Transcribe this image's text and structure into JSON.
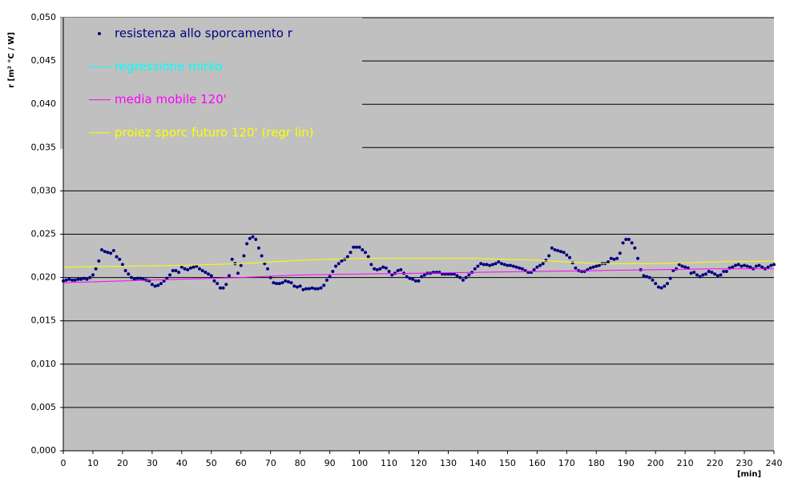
{
  "chart_data": {
    "type": "scatter",
    "ylabel": "r [m² °C / W]",
    "xlabel": "[min]",
    "xlim": [
      0,
      240
    ],
    "xticks": [
      0,
      10,
      20,
      30,
      40,
      50,
      60,
      70,
      80,
      90,
      100,
      110,
      120,
      130,
      140,
      150,
      160,
      170,
      180,
      190,
      200,
      210,
      220,
      230,
      240
    ],
    "ylim": [
      0,
      0.05
    ],
    "yticks": [
      {
        "value": 0,
        "label": "0,000"
      },
      {
        "value": 0.005,
        "label": "0,005"
      },
      {
        "value": 0.01,
        "label": "0,010"
      },
      {
        "value": 0.015,
        "label": "0,015"
      },
      {
        "value": 0.02,
        "label": "0,020"
      },
      {
        "value": 0.025,
        "label": "0,025"
      },
      {
        "value": 0.03,
        "label": "0,030"
      },
      {
        "value": 0.035,
        "label": "0,035"
      },
      {
        "value": 0.04,
        "label": "0,040"
      },
      {
        "value": 0.045,
        "label": "0,045"
      },
      {
        "value": 0.05,
        "label": "0,050"
      }
    ],
    "grid": true,
    "legend": "top-left",
    "background": "#c0c0c0",
    "series": [
      {
        "name": "resistenza allo sporcamento r",
        "color": "#000080",
        "mode": "markers",
        "x": [
          0,
          1,
          2,
          3,
          4,
          5,
          6,
          7,
          8,
          9,
          10,
          11,
          12,
          13,
          14,
          15,
          16,
          17,
          18,
          19,
          20,
          21,
          22,
          23,
          24,
          25,
          26,
          27,
          28,
          29,
          30,
          31,
          32,
          33,
          34,
          35,
          36,
          37,
          38,
          39,
          40,
          41,
          42,
          43,
          44,
          45,
          46,
          47,
          48,
          49,
          50,
          51,
          52,
          53,
          54,
          55,
          56,
          57,
          58,
          59,
          60,
          61,
          62,
          63,
          64,
          65,
          66,
          67,
          68,
          69,
          70,
          71,
          72,
          73,
          74,
          75,
          76,
          77,
          78,
          79,
          80,
          81,
          82,
          83,
          84,
          85,
          86,
          87,
          88,
          89,
          90,
          91,
          92,
          93,
          94,
          95,
          96,
          97,
          98,
          99,
          100,
          101,
          102,
          103,
          104,
          105,
          106,
          107,
          108,
          109,
          110,
          111,
          112,
          113,
          114,
          115,
          116,
          117,
          118,
          119,
          120,
          121,
          122,
          123,
          124,
          125,
          126,
          127,
          128,
          129,
          130,
          131,
          132,
          133,
          134,
          135,
          136,
          137,
          138,
          139,
          140,
          141,
          142,
          143,
          144,
          145,
          146,
          147,
          148,
          149,
          150,
          151,
          152,
          153,
          154,
          155,
          156,
          157,
          158,
          159,
          160,
          161,
          162,
          163,
          164,
          165,
          166,
          167,
          168,
          169,
          170,
          171,
          172,
          173,
          174,
          175,
          176,
          177,
          178,
          179,
          180,
          181,
          182,
          183,
          184,
          185,
          186,
          187,
          188,
          189,
          190,
          191,
          192,
          193,
          194,
          195,
          196,
          197,
          198,
          199,
          200,
          201,
          202,
          203,
          204,
          205,
          206,
          207,
          208,
          209,
          210,
          211,
          212,
          213,
          214,
          215,
          216,
          217,
          218,
          219,
          220,
          221,
          222,
          223,
          224,
          225,
          226,
          227,
          228,
          229,
          230,
          231,
          232,
          233,
          234,
          235,
          236,
          237,
          238,
          239,
          240
        ],
        "values": [
          0.0196,
          0.0197,
          0.0198,
          0.0197,
          0.0197,
          0.0198,
          0.0198,
          0.0199,
          0.0198,
          0.02,
          0.0203,
          0.021,
          0.0219,
          0.0232,
          0.023,
          0.0229,
          0.0228,
          0.0231,
          0.0224,
          0.0221,
          0.0215,
          0.0208,
          0.0204,
          0.02,
          0.0198,
          0.0199,
          0.0199,
          0.0198,
          0.0197,
          0.0196,
          0.0192,
          0.019,
          0.0191,
          0.0193,
          0.0196,
          0.0199,
          0.0203,
          0.0208,
          0.0208,
          0.0206,
          0.0212,
          0.021,
          0.0209,
          0.0211,
          0.0212,
          0.0213,
          0.021,
          0.0208,
          0.0206,
          0.0204,
          0.0202,
          0.0196,
          0.0193,
          0.0188,
          0.0188,
          0.0192,
          0.0202,
          0.0221,
          0.0216,
          0.0205,
          0.0214,
          0.0225,
          0.0239,
          0.0245,
          0.0247,
          0.0244,
          0.0234,
          0.0225,
          0.0216,
          0.021,
          0.02,
          0.0194,
          0.0193,
          0.0193,
          0.0194,
          0.0196,
          0.0195,
          0.0194,
          0.019,
          0.0189,
          0.019,
          0.0186,
          0.0187,
          0.0187,
          0.0188,
          0.0187,
          0.0187,
          0.0188,
          0.0191,
          0.0197,
          0.0201,
          0.0207,
          0.0213,
          0.0216,
          0.0219,
          0.0221,
          0.0224,
          0.0229,
          0.0235,
          0.0235,
          0.0235,
          0.0232,
          0.0229,
          0.0224,
          0.0215,
          0.021,
          0.0209,
          0.021,
          0.0212,
          0.0211,
          0.0207,
          0.0203,
          0.0205,
          0.0208,
          0.0209,
          0.0205,
          0.0201,
          0.0199,
          0.0198,
          0.0196,
          0.0196,
          0.0201,
          0.0203,
          0.0205,
          0.0205,
          0.0206,
          0.0206,
          0.0206,
          0.0204,
          0.0204,
          0.0204,
          0.0204,
          0.0204,
          0.0202,
          0.02,
          0.0197,
          0.02,
          0.0203,
          0.0206,
          0.021,
          0.0213,
          0.0216,
          0.0215,
          0.0215,
          0.0214,
          0.0215,
          0.0216,
          0.0218,
          0.0216,
          0.0215,
          0.0214,
          0.0214,
          0.0213,
          0.0212,
          0.0211,
          0.021,
          0.0208,
          0.0206,
          0.0206,
          0.0209,
          0.0212,
          0.0214,
          0.0216,
          0.022,
          0.0225,
          0.0234,
          0.0232,
          0.0231,
          0.023,
          0.0229,
          0.0226,
          0.0223,
          0.0217,
          0.0211,
          0.0208,
          0.0207,
          0.0207,
          0.0209,
          0.0211,
          0.0212,
          0.0213,
          0.0214,
          0.0216,
          0.0216,
          0.0218,
          0.0222,
          0.0221,
          0.0222,
          0.0228,
          0.024,
          0.0244,
          0.0244,
          0.024,
          0.0234,
          0.0222,
          0.0209,
          0.0202,
          0.0201,
          0.02,
          0.0197,
          0.0193,
          0.0189,
          0.0188,
          0.019,
          0.0193,
          0.0199,
          0.0208,
          0.021,
          0.0215,
          0.0213,
          0.0212,
          0.0211,
          0.0205,
          0.0206,
          0.0203,
          0.0201,
          0.0203,
          0.0204,
          0.0207,
          0.0206,
          0.0204,
          0.0202,
          0.0203,
          0.0207,
          0.0207,
          0.0211,
          0.0212,
          0.0214,
          0.0215,
          0.0213,
          0.0214,
          0.0213,
          0.0212,
          0.021,
          0.0213,
          0.0214,
          0.0212,
          0.021,
          0.0212,
          0.0214,
          0.0215
        ]
      },
      {
        "name": "regressione mirko",
        "color": "#00ffff",
        "mode": "line",
        "x": [],
        "values": []
      },
      {
        "name": "media mobile 120'",
        "color": "#ff00ff",
        "mode": "line",
        "x": [
          0,
          20,
          40,
          60,
          80,
          100,
          120,
          140,
          160,
          180,
          200,
          220,
          240
        ],
        "values": [
          0.0194,
          0.0196,
          0.0198,
          0.02,
          0.0203,
          0.0204,
          0.0205,
          0.0206,
          0.0207,
          0.0208,
          0.0209,
          0.021,
          0.021
        ]
      },
      {
        "name": "proiez sporc futuro 120' (regr lin)",
        "color": "#ffff00",
        "mode": "line",
        "x": [
          0,
          20,
          40,
          60,
          80,
          100,
          120,
          140,
          160,
          180,
          200,
          220,
          240
        ],
        "values": [
          0.0212,
          0.0213,
          0.0214,
          0.0216,
          0.022,
          0.0222,
          0.0222,
          0.0222,
          0.022,
          0.0216,
          0.0216,
          0.0218,
          0.0219
        ]
      }
    ]
  }
}
